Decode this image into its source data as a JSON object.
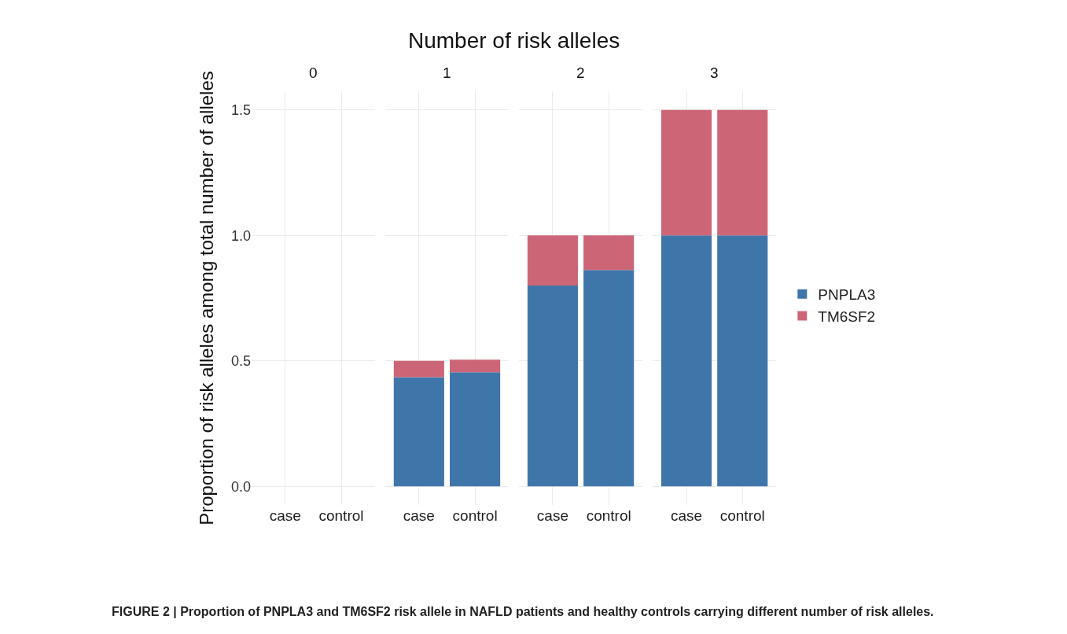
{
  "chart_data": [
    {
      "type": "bar",
      "title": "0",
      "stacked": true,
      "categories": [
        "case",
        "control"
      ],
      "ylabel": "Proportion of risk alleles among total number of alleles",
      "ylim": [
        -0.075,
        1.575
      ],
      "yticks": [
        {
          "value": 0,
          "label": "0.0"
        },
        0.5,
        {
          "value": 1,
          "label": "1.0"
        },
        1.5
      ],
      "grid": true,
      "annotations": [
        "Number of risk alleles",
        "FIGURE 2 | Proportion of PNPLA3 and TM6SF2 risk allele in NAFLD patients and healthy controls carrying different number of risk alleles."
      ],
      "series": [
        {
          "color": "#3f76a9",
          "values": [
            0,
            0
          ]
        },
        {
          "color": "#cc6677",
          "values": [
            0,
            0
          ]
        }
      ]
    },
    {
      "type": "bar",
      "title": "1",
      "stacked": true,
      "categories": [
        "case",
        "control"
      ],
      "ylim": [
        -0.075,
        1.575
      ],
      "grid": true,
      "tick_labels": "x",
      "series": [
        {
          "color": "#3f76a9",
          "values": [
            0.435,
            0.455
          ]
        },
        {
          "color": "#cc6677",
          "values": [
            0.065,
            0.05
          ]
        }
      ]
    },
    {
      "type": "bar",
      "title": "2",
      "stacked": true,
      "categories": [
        "case",
        "control"
      ],
      "ylim": [
        -0.075,
        1.575
      ],
      "grid": true,
      "tick_labels": "x",
      "series": [
        {
          "color": "#3f76a9",
          "values": [
            0.8,
            0.862
          ]
        },
        {
          "color": "#cc6677",
          "values": [
            0.2,
            0.138
          ]
        }
      ]
    },
    {
      "type": "bar",
      "title": "3",
      "stacked": true,
      "categories": [
        "case",
        "control"
      ],
      "ylim": [
        -0.075,
        1.575
      ],
      "grid": true,
      "tick_labels": "x",
      "legend": "right",
      "series": [
        {
          "name": "PNPLA3",
          "color": "#3f76a9",
          "values": [
            1.0,
            1.0
          ]
        },
        {
          "name": "TM6SF2",
          "color": "#cc6677",
          "values": [
            0.5,
            0.5
          ]
        }
      ]
    }
  ]
}
